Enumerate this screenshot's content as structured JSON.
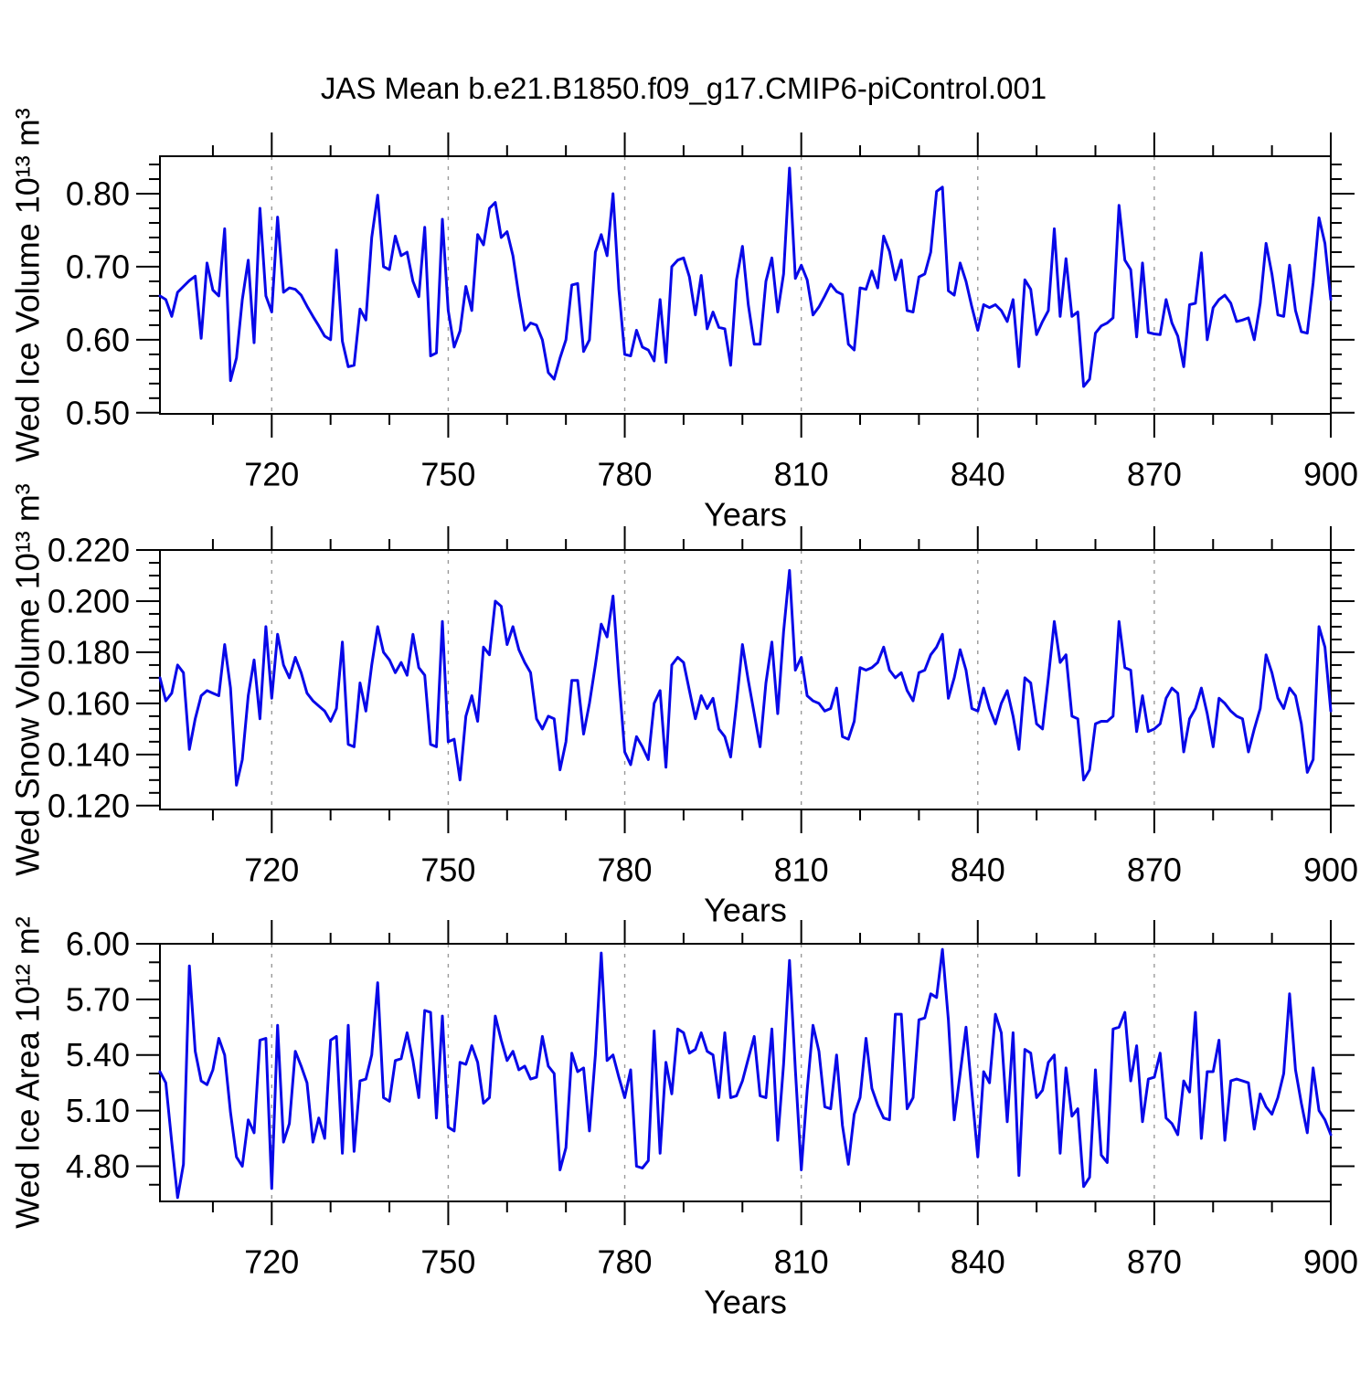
{
  "title": "JAS Mean b.e21.B1850.f09_g17.CMIP6-piControl.001",
  "colors": {
    "line": "#0808e8",
    "grid": "#999999",
    "axis": "#000000",
    "background": "#ffffff",
    "text": "#000000"
  },
  "chart_data": [
    {
      "type": "line",
      "name": "wed-ice-volume",
      "ylabel": "Wed Ice Volume 10¹³ m³",
      "xlabel": "Years",
      "legend": null,
      "grid": "vertical-dashed",
      "xlim": [
        701,
        900
      ],
      "x_start": 701,
      "x_step": 1,
      "xticks": [
        720,
        750,
        780,
        810,
        840,
        870,
        900
      ],
      "x_minor_step": 10,
      "ylim": [
        0.4985,
        0.8513
      ],
      "yticks": [
        0.5,
        0.6,
        0.7,
        0.8
      ],
      "ytick_labels": [
        "0.50",
        "0.60",
        "0.70",
        "0.80"
      ],
      "y_minor_step": 0.02,
      "values": [
        0.66,
        0.655,
        0.632,
        0.665,
        0.673,
        0.681,
        0.687,
        0.602,
        0.705,
        0.668,
        0.66,
        0.752,
        0.544,
        0.575,
        0.655,
        0.709,
        0.596,
        0.78,
        0.66,
        0.638,
        0.768,
        0.665,
        0.671,
        0.669,
        0.661,
        0.646,
        0.632,
        0.619,
        0.605,
        0.6,
        0.723,
        0.598,
        0.563,
        0.565,
        0.642,
        0.627,
        0.74,
        0.798,
        0.7,
        0.696,
        0.742,
        0.715,
        0.72,
        0.68,
        0.659,
        0.754,
        0.578,
        0.582,
        0.765,
        0.64,
        0.59,
        0.612,
        0.673,
        0.64,
        0.744,
        0.73,
        0.78,
        0.788,
        0.74,
        0.748,
        0.715,
        0.66,
        0.613,
        0.623,
        0.62,
        0.6,
        0.555,
        0.546,
        0.575,
        0.6,
        0.675,
        0.677,
        0.584,
        0.6,
        0.72,
        0.744,
        0.715,
        0.8,
        0.669,
        0.58,
        0.578,
        0.613,
        0.59,
        0.586,
        0.571,
        0.655,
        0.569,
        0.7,
        0.709,
        0.712,
        0.686,
        0.634,
        0.688,
        0.615,
        0.638,
        0.617,
        0.615,
        0.565,
        0.682,
        0.728,
        0.648,
        0.594,
        0.594,
        0.68,
        0.712,
        0.638,
        0.69,
        0.835,
        0.684,
        0.702,
        0.682,
        0.634,
        0.645,
        0.66,
        0.676,
        0.666,
        0.662,
        0.594,
        0.586,
        0.671,
        0.669,
        0.694,
        0.671,
        0.742,
        0.721,
        0.682,
        0.709,
        0.64,
        0.638,
        0.686,
        0.69,
        0.72,
        0.803,
        0.809,
        0.667,
        0.661,
        0.705,
        0.68,
        0.645,
        0.613,
        0.648,
        0.644,
        0.648,
        0.64,
        0.625,
        0.655,
        0.563,
        0.682,
        0.669,
        0.607,
        0.625,
        0.64,
        0.752,
        0.632,
        0.711,
        0.632,
        0.638,
        0.536,
        0.546,
        0.609,
        0.619,
        0.623,
        0.63,
        0.784,
        0.709,
        0.696,
        0.604,
        0.705,
        0.61,
        0.608,
        0.607,
        0.655,
        0.623,
        0.605,
        0.563,
        0.648,
        0.65,
        0.719,
        0.6,
        0.644,
        0.655,
        0.661,
        0.65,
        0.625,
        0.627,
        0.63,
        0.6,
        0.65,
        0.732,
        0.69,
        0.634,
        0.632,
        0.702,
        0.64,
        0.611,
        0.609,
        0.678,
        0.767,
        0.732,
        0.655
      ]
    },
    {
      "type": "line",
      "name": "wed-snow-volume",
      "ylabel": "Wed Snow Volume 10¹³ m³",
      "xlabel": "Years",
      "legend": null,
      "grid": "vertical-dashed",
      "xlim": [
        701,
        900
      ],
      "x_start": 701,
      "x_step": 1,
      "xticks": [
        720,
        750,
        780,
        810,
        840,
        870,
        900
      ],
      "x_minor_step": 10,
      "ylim": [
        0.1185,
        0.22
      ],
      "yticks": [
        0.12,
        0.14,
        0.16,
        0.18,
        0.2,
        0.22
      ],
      "ytick_labels": [
        "0.120",
        "0.140",
        "0.160",
        "0.180",
        "0.200",
        "0.220"
      ],
      "y_minor_step": 0.005,
      "values": [
        0.17,
        0.161,
        0.164,
        0.175,
        0.172,
        0.142,
        0.154,
        0.163,
        0.165,
        0.164,
        0.163,
        0.183,
        0.166,
        0.128,
        0.138,
        0.163,
        0.177,
        0.154,
        0.19,
        0.162,
        0.187,
        0.175,
        0.17,
        0.178,
        0.172,
        0.164,
        0.161,
        0.159,
        0.157,
        0.153,
        0.158,
        0.184,
        0.144,
        0.143,
        0.168,
        0.157,
        0.175,
        0.19,
        0.18,
        0.177,
        0.172,
        0.176,
        0.171,
        0.187,
        0.174,
        0.171,
        0.144,
        0.143,
        0.192,
        0.145,
        0.146,
        0.13,
        0.155,
        0.163,
        0.153,
        0.182,
        0.179,
        0.2,
        0.198,
        0.183,
        0.19,
        0.181,
        0.176,
        0.172,
        0.154,
        0.15,
        0.155,
        0.154,
        0.134,
        0.145,
        0.169,
        0.169,
        0.148,
        0.16,
        0.175,
        0.191,
        0.186,
        0.202,
        0.17,
        0.141,
        0.136,
        0.147,
        0.143,
        0.138,
        0.16,
        0.165,
        0.135,
        0.175,
        0.178,
        0.176,
        0.165,
        0.154,
        0.163,
        0.158,
        0.162,
        0.15,
        0.147,
        0.139,
        0.16,
        0.183,
        0.169,
        0.156,
        0.143,
        0.168,
        0.184,
        0.156,
        0.188,
        0.212,
        0.173,
        0.178,
        0.163,
        0.161,
        0.16,
        0.157,
        0.158,
        0.166,
        0.147,
        0.146,
        0.153,
        0.174,
        0.173,
        0.174,
        0.176,
        0.182,
        0.173,
        0.17,
        0.172,
        0.165,
        0.161,
        0.172,
        0.173,
        0.179,
        0.182,
        0.187,
        0.162,
        0.17,
        0.181,
        0.173,
        0.158,
        0.157,
        0.166,
        0.158,
        0.152,
        0.16,
        0.165,
        0.155,
        0.142,
        0.17,
        0.168,
        0.152,
        0.15,
        0.17,
        0.192,
        0.176,
        0.179,
        0.155,
        0.154,
        0.13,
        0.134,
        0.152,
        0.153,
        0.153,
        0.155,
        0.192,
        0.174,
        0.173,
        0.149,
        0.163,
        0.149,
        0.15,
        0.152,
        0.162,
        0.166,
        0.164,
        0.141,
        0.154,
        0.158,
        0.166,
        0.156,
        0.143,
        0.162,
        0.16,
        0.157,
        0.155,
        0.154,
        0.141,
        0.15,
        0.158,
        0.179,
        0.172,
        0.162,
        0.158,
        0.166,
        0.163,
        0.152,
        0.133,
        0.138,
        0.19,
        0.182,
        0.157
      ]
    },
    {
      "type": "line",
      "name": "wed-ice-area",
      "ylabel": "Wed Ice Area 10¹² m²",
      "xlabel": "Years",
      "legend": null,
      "grid": "vertical-dashed",
      "xlim": [
        701,
        900
      ],
      "x_start": 701,
      "x_step": 1,
      "xticks": [
        720,
        750,
        780,
        810,
        840,
        870,
        900
      ],
      "x_minor_step": 10,
      "ylim": [
        4.61,
        6.0
      ],
      "yticks": [
        4.8,
        5.1,
        5.4,
        5.7,
        6.0
      ],
      "ytick_labels": [
        "4.80",
        "5.10",
        "5.40",
        "5.70",
        "6.00"
      ],
      "y_minor_step": 0.1,
      "values": [
        5.31,
        5.25,
        4.93,
        4.63,
        4.81,
        5.88,
        5.42,
        5.26,
        5.24,
        5.32,
        5.49,
        5.4,
        5.09,
        4.85,
        4.8,
        5.05,
        4.98,
        5.48,
        5.49,
        4.68,
        5.56,
        4.93,
        5.03,
        5.42,
        5.34,
        5.25,
        4.93,
        5.06,
        4.95,
        5.48,
        5.5,
        4.87,
        5.56,
        4.88,
        5.26,
        5.27,
        5.4,
        5.79,
        5.17,
        5.15,
        5.37,
        5.38,
        5.52,
        5.37,
        5.17,
        5.64,
        5.63,
        5.06,
        5.61,
        5.01,
        4.99,
        5.36,
        5.35,
        5.45,
        5.36,
        5.14,
        5.17,
        5.61,
        5.48,
        5.37,
        5.42,
        5.32,
        5.34,
        5.27,
        5.28,
        5.5,
        5.34,
        5.3,
        4.78,
        4.9,
        5.41,
        5.31,
        5.33,
        4.99,
        5.4,
        5.95,
        5.37,
        5.4,
        5.28,
        5.17,
        5.32,
        4.8,
        4.79,
        4.83,
        5.53,
        4.87,
        5.36,
        5.19,
        5.54,
        5.52,
        5.41,
        5.43,
        5.52,
        5.42,
        5.4,
        5.17,
        5.52,
        5.17,
        5.18,
        5.26,
        5.38,
        5.5,
        5.18,
        5.17,
        5.54,
        4.94,
        5.35,
        5.91,
        5.32,
        4.78,
        5.21,
        5.56,
        5.42,
        5.12,
        5.11,
        5.4,
        5.02,
        4.81,
        5.08,
        5.17,
        5.49,
        5.22,
        5.13,
        5.06,
        5.05,
        5.62,
        5.62,
        5.11,
        5.17,
        5.59,
        5.6,
        5.73,
        5.71,
        5.97,
        5.59,
        5.05,
        5.3,
        5.55,
        5.2,
        4.85,
        5.31,
        5.25,
        5.62,
        5.52,
        5.04,
        5.52,
        4.75,
        5.43,
        5.41,
        5.17,
        5.21,
        5.36,
        5.4,
        4.87,
        5.33,
        5.07,
        5.11,
        4.69,
        4.74,
        5.32,
        4.86,
        4.82,
        5.54,
        5.55,
        5.63,
        5.26,
        5.45,
        5.04,
        5.27,
        5.28,
        5.41,
        5.06,
        5.03,
        4.97,
        5.26,
        5.2,
        5.63,
        4.95,
        5.31,
        5.31,
        5.48,
        4.94,
        5.26,
        5.27,
        5.26,
        5.25,
        5.0,
        5.19,
        5.12,
        5.08,
        5.17,
        5.3,
        5.73,
        5.32,
        5.14,
        4.98,
        5.33,
        5.1,
        5.05,
        4.97
      ]
    }
  ]
}
